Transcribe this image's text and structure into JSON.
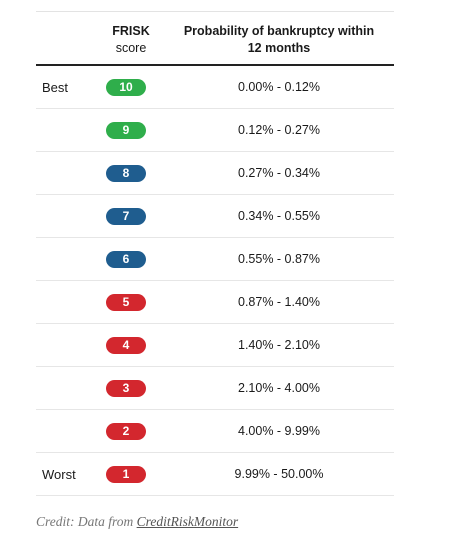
{
  "header": {
    "score_line1": "FRISK",
    "score_line2": "score",
    "probability_line1": "Probability of bankruptcy within",
    "probability_line2": "12 months"
  },
  "colors": {
    "green": "#2fae4b",
    "blue": "#1f5d8f",
    "red": "#d3272e"
  },
  "rows": [
    {
      "label": "Best",
      "score": "10",
      "color": "green",
      "range": "0.00% - 0.12%"
    },
    {
      "label": "",
      "score": "9",
      "color": "green",
      "range": "0.12% - 0.27%"
    },
    {
      "label": "",
      "score": "8",
      "color": "blue",
      "range": "0.27% - 0.34%"
    },
    {
      "label": "",
      "score": "7",
      "color": "blue",
      "range": "0.34% - 0.55%"
    },
    {
      "label": "",
      "score": "6",
      "color": "blue",
      "range": "0.55% - 0.87%"
    },
    {
      "label": "",
      "score": "5",
      "color": "red",
      "range": "0.87% - 1.40%"
    },
    {
      "label": "",
      "score": "4",
      "color": "red",
      "range": "1.40% - 2.10%"
    },
    {
      "label": "",
      "score": "3",
      "color": "red",
      "range": "2.10% - 4.00%"
    },
    {
      "label": "",
      "score": "2",
      "color": "red",
      "range": "4.00% - 9.99%"
    },
    {
      "label": "Worst",
      "score": "1",
      "color": "red",
      "range": "9.99% - 50.00%"
    }
  ],
  "credit": {
    "prefix": "Credit: Data from ",
    "link": "CreditRiskMonitor"
  }
}
